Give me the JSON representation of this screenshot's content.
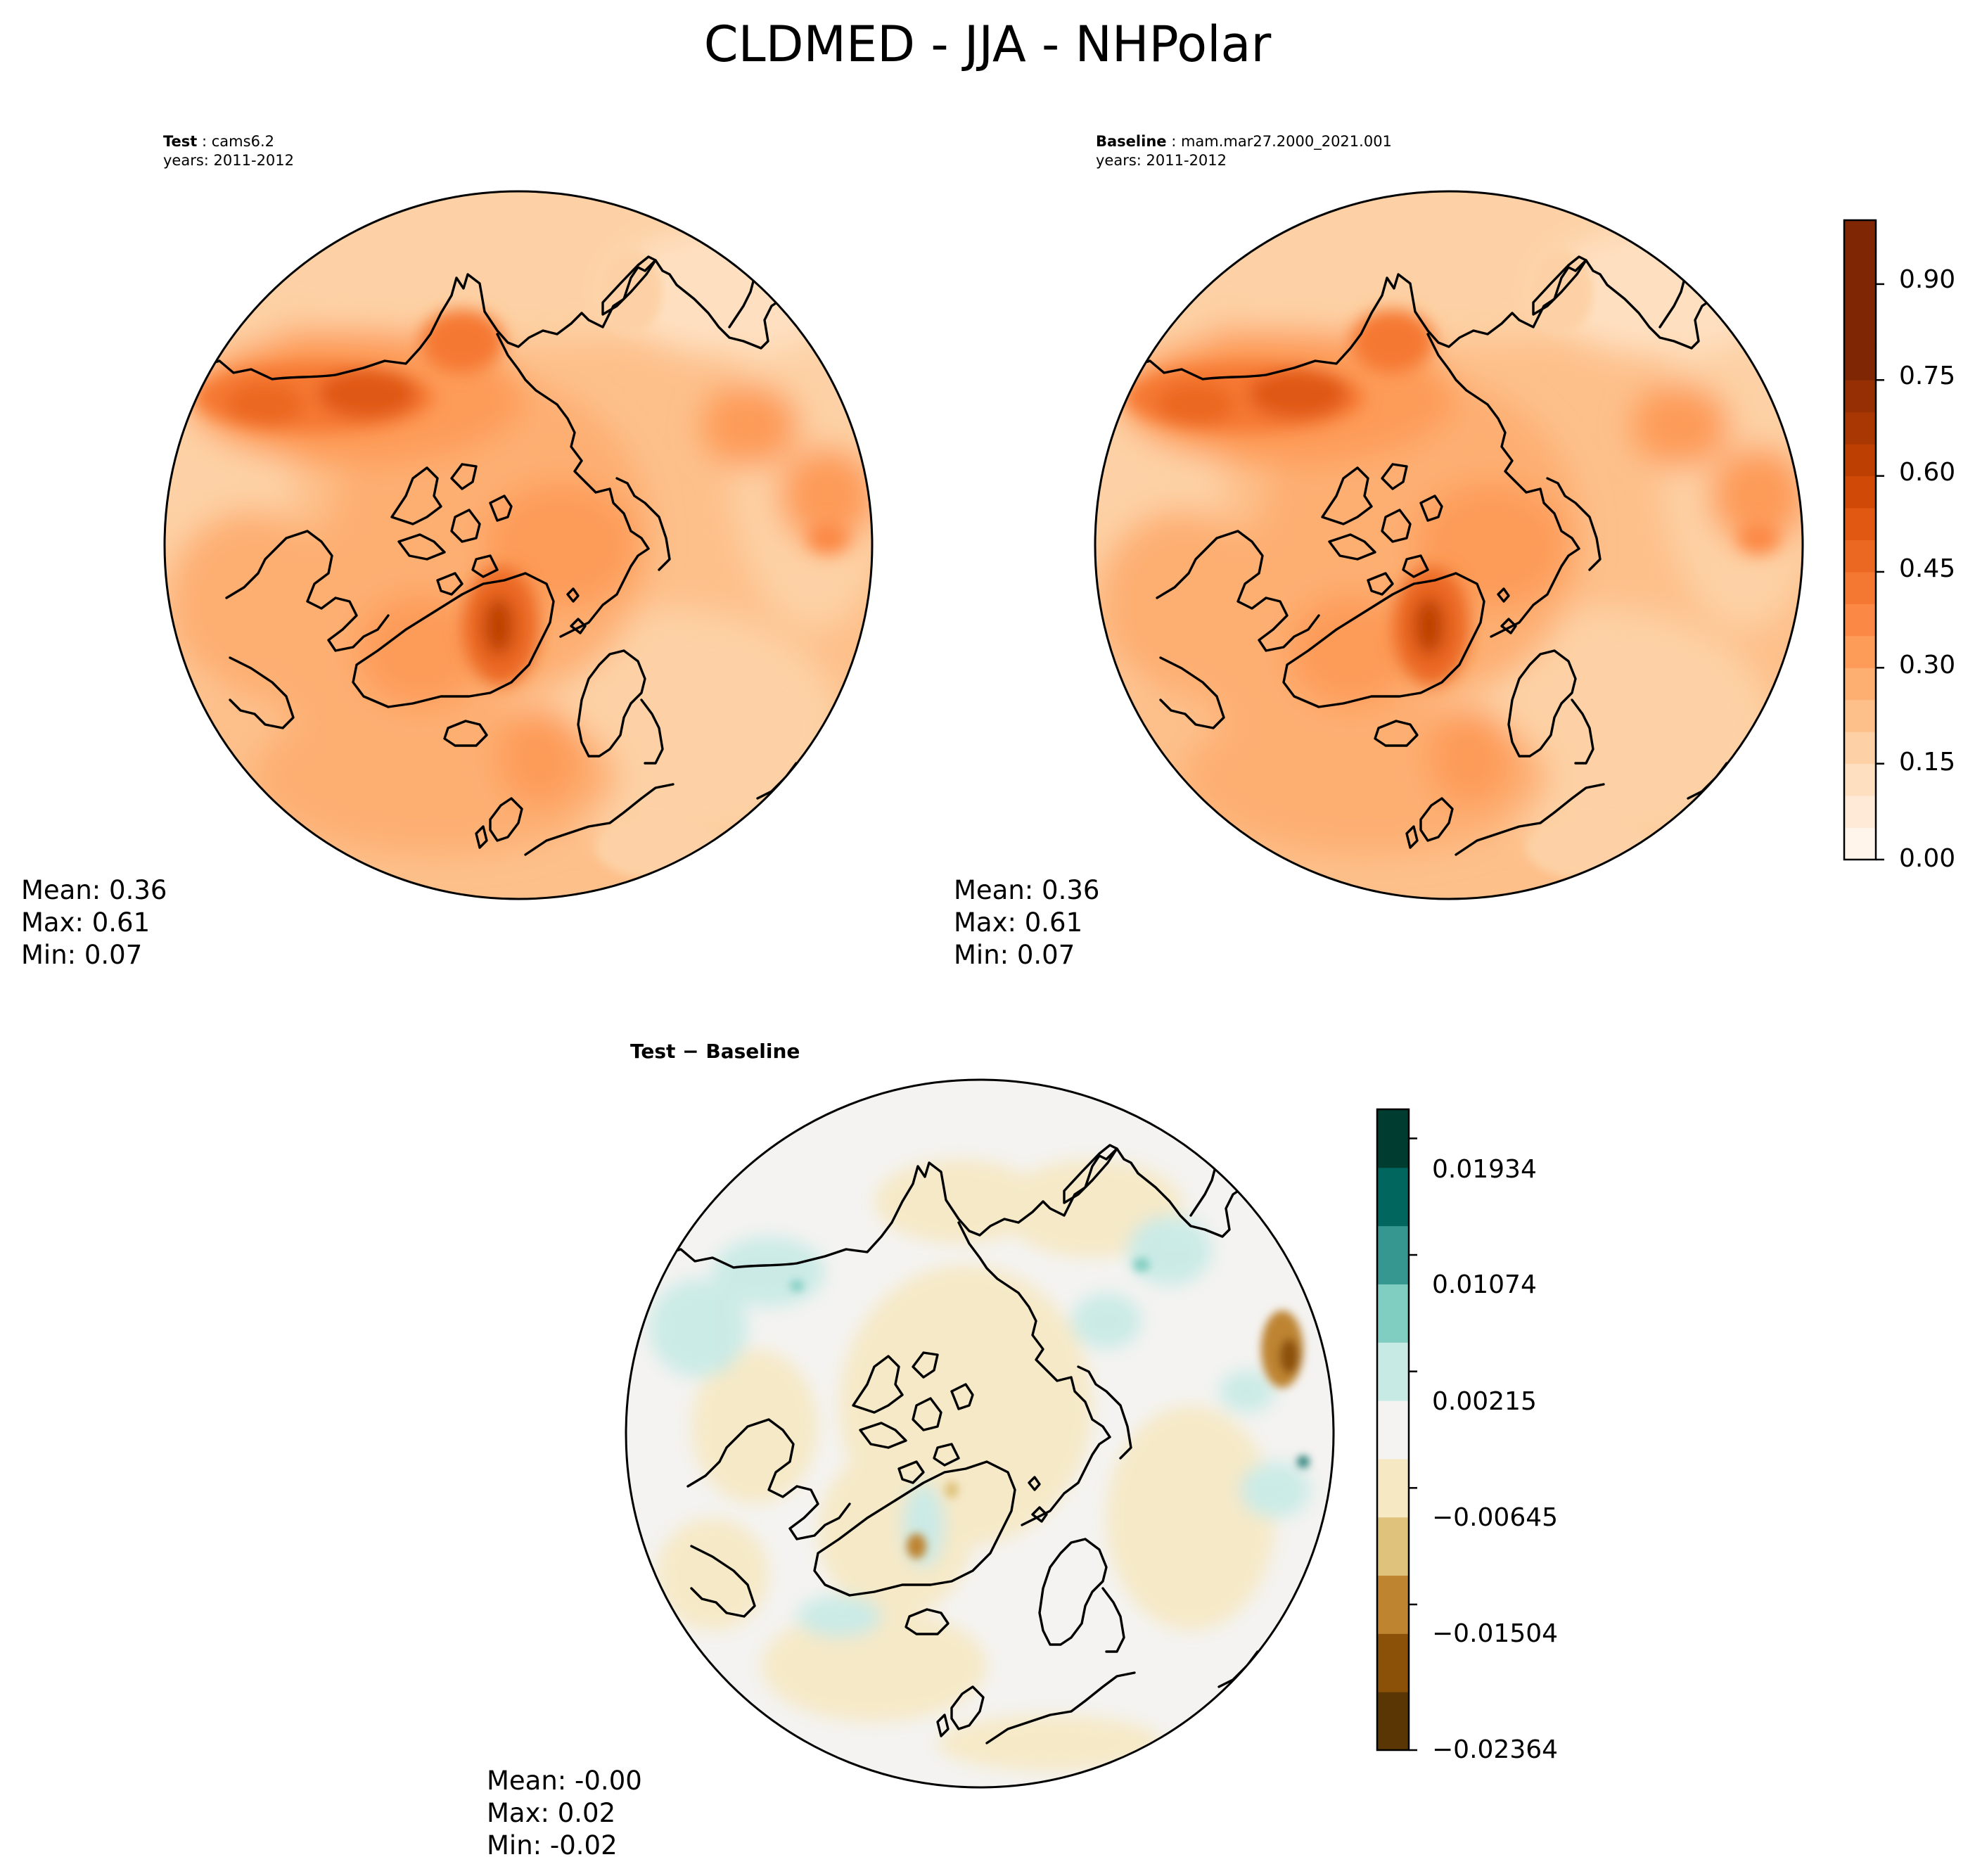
{
  "figure": {
    "title": "CLDMED - JJA - NHPolar"
  },
  "panels": [
    {
      "id": "test",
      "caption_label": "Test",
      "caption_case": "cams6.2",
      "caption_years": "years: 2011-2012",
      "stats": {
        "mean": "Mean:  0.36",
        "max": "Max:  0.61",
        "min": "Min:  0.07"
      }
    },
    {
      "id": "baseline",
      "caption_label": "Baseline",
      "caption_case": "mam.mar27.2000_2021.001",
      "caption_years": "years: 2011-2012",
      "stats": {
        "mean": "Mean:  0.36",
        "max": "Max:  0.61",
        "min": "Min:  0.07"
      }
    },
    {
      "id": "difference",
      "title": "Test − Baseline",
      "stats": {
        "mean": "Mean: -0.00",
        "max": "Max:  0.02",
        "min": "Min: -0.02"
      }
    }
  ],
  "colorbars": {
    "field": {
      "colormap": "Oranges",
      "range": [
        0.0,
        1.0
      ],
      "levels": [
        0.0,
        0.05,
        0.1,
        0.15,
        0.2,
        0.25,
        0.3,
        0.35,
        0.4,
        0.45,
        0.5,
        0.55,
        0.6,
        0.65,
        0.7,
        0.75,
        0.8,
        0.85,
        0.9,
        0.95,
        1.0
      ],
      "tick_values": [
        0.0,
        0.15,
        0.3,
        0.45,
        0.6,
        0.75,
        0.9
      ],
      "tick_labels": [
        "0.00",
        "0.15",
        "0.30",
        "0.45",
        "0.60",
        "0.75",
        "0.90"
      ],
      "colors": [
        "#fff5eb",
        "#feead6",
        "#fee0c1",
        "#fdd1a5",
        "#fdc08b",
        "#fdaf72",
        "#fd9b59",
        "#fc8845",
        "#f57832",
        "#eb6822",
        "#e05812",
        "#d14907",
        "#bd4002",
        "#a83703",
        "#963004",
        "#7f2704",
        "#7f2704",
        "#7f2704",
        "#7f2704",
        "#7f2704"
      ]
    },
    "diff": {
      "colormap": "BrBG",
      "range": [
        -0.02364,
        0.02364
      ],
      "tick_labels": [
        "0.01934",
        "0.01074",
        "0.00215",
        "−0.00645",
        "−0.01504",
        "−0.02364"
      ],
      "colors": [
        "#5a3605",
        "#8c5109",
        "#be8430",
        "#dfc27c",
        "#f6e8c3",
        "#f4f3f1",
        "#c7eae5",
        "#80cdc1",
        "#35978f",
        "#01665e",
        "#003c30"
      ]
    }
  },
  "map": {
    "projection": "North Polar Stereographic",
    "coastline_color": "#000000"
  }
}
